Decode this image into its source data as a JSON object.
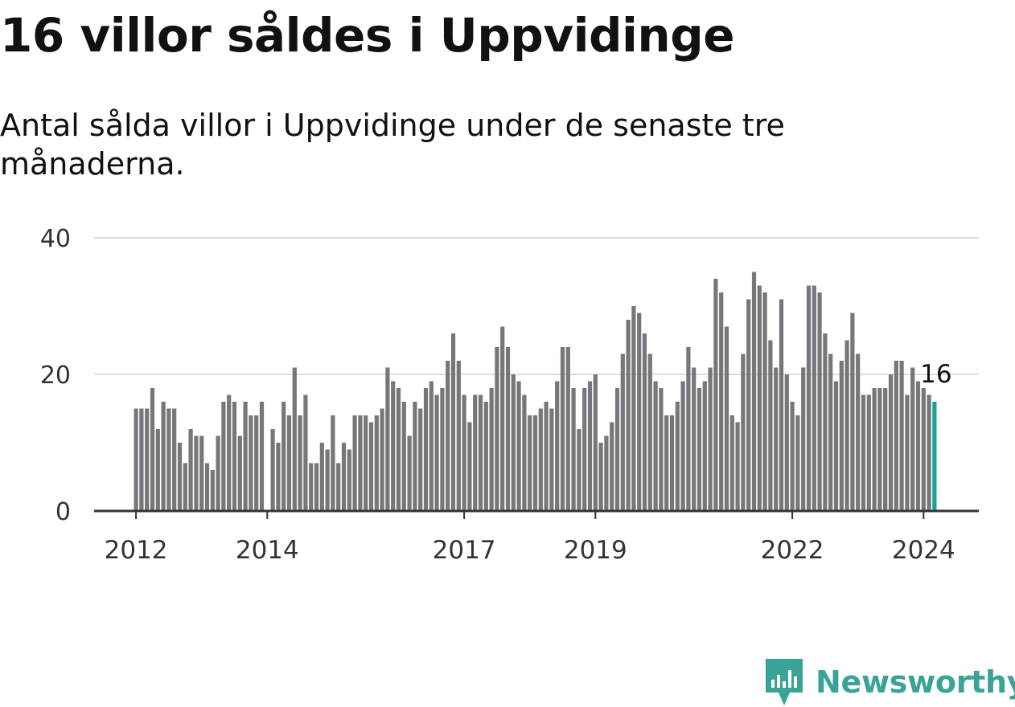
{
  "title": "16 villor såldes i Uppvidinge",
  "subtitle": "Antal sålda villor i Uppvidinge under de senaste tre månaderna.",
  "brand": {
    "name": "Newsworthy",
    "icon": "newsworthy-logo-icon",
    "color": "#3aa397"
  },
  "chart_data": {
    "type": "bar",
    "title": "16 villor såldes i Uppvidinge",
    "subtitle": "Antal sålda villor i Uppvidinge under de senaste tre månaderna.",
    "xlabel": "",
    "ylabel": "",
    "ylim": [
      0,
      40
    ],
    "yticks": [
      0,
      20,
      40
    ],
    "grid": true,
    "x_tick_labels": [
      {
        "label": "2012",
        "year": 2012
      },
      {
        "label": "2014",
        "year": 2014
      },
      {
        "label": "2017",
        "year": 2017
      },
      {
        "label": "2019",
        "year": 2019
      },
      {
        "label": "2022",
        "year": 2022
      },
      {
        "label": "2024",
        "year": 2024
      }
    ],
    "start_month": "2012-01",
    "bar_color": "#77767b",
    "highlight_color": "#1ea09a",
    "highlight_last": true,
    "last_value_label": "16",
    "values": [
      15,
      15,
      15,
      18,
      12,
      16,
      15,
      15,
      10,
      7,
      12,
      11,
      11,
      7,
      6,
      11,
      16,
      17,
      16,
      11,
      16,
      14,
      14,
      16,
      0,
      12,
      10,
      16,
      14,
      21,
      14,
      17,
      7,
      7,
      10,
      9,
      14,
      7,
      10,
      9,
      14,
      14,
      14,
      13,
      14,
      15,
      21,
      19,
      18,
      16,
      11,
      16,
      15,
      18,
      19,
      17,
      18,
      22,
      26,
      22,
      17,
      13,
      17,
      17,
      16,
      18,
      24,
      27,
      24,
      20,
      19,
      17,
      14,
      14,
      15,
      16,
      15,
      19,
      24,
      24,
      18,
      12,
      18,
      19,
      20,
      10,
      11,
      13,
      18,
      23,
      28,
      30,
      29,
      26,
      23,
      19,
      18,
      14,
      14,
      16,
      19,
      24,
      21,
      18,
      19,
      21,
      34,
      32,
      27,
      14,
      13,
      23,
      31,
      35,
      33,
      32,
      25,
      21,
      31,
      20,
      16,
      14,
      21,
      33,
      33,
      32,
      26,
      23,
      19,
      22,
      25,
      29,
      23,
      17,
      17,
      18,
      18,
      18,
      20,
      22,
      22,
      17,
      21,
      19,
      18,
      17,
      16
    ]
  }
}
